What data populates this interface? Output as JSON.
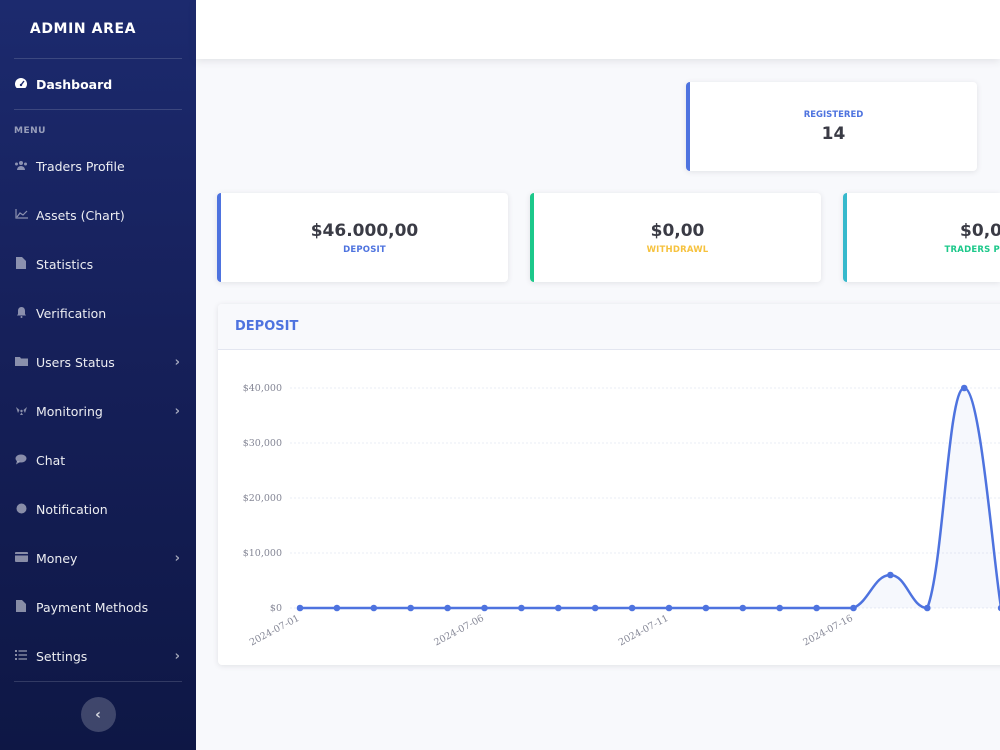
{
  "sidebar": {
    "brand": "ADMIN AREA",
    "dashboard": {
      "label": "Dashboard",
      "icon": "tachometer-icon"
    },
    "menu_heading": "MENU",
    "items": [
      {
        "label": "Traders Profile",
        "icon": "users-icon",
        "has_submenu": false
      },
      {
        "label": "Assets (Chart)",
        "icon": "area-chart-icon",
        "has_submenu": false
      },
      {
        "label": "Statistics",
        "icon": "file-icon",
        "has_submenu": false
      },
      {
        "label": "Verification",
        "icon": "bell-icon",
        "has_submenu": false
      },
      {
        "label": "Users Status",
        "icon": "folder-icon",
        "has_submenu": true
      },
      {
        "label": "Monitoring",
        "icon": "radiation-icon",
        "has_submenu": true
      },
      {
        "label": "Chat",
        "icon": "comment-icon",
        "has_submenu": false
      },
      {
        "label": "Notification",
        "icon": "circle-icon",
        "has_submenu": false
      },
      {
        "label": "Money",
        "icon": "wallet-icon",
        "has_submenu": true
      },
      {
        "label": "Payment Methods",
        "icon": "file-icon",
        "has_submenu": false
      },
      {
        "label": "Settings",
        "icon": "list-icon",
        "has_submenu": true
      }
    ],
    "toggle_icon": "chevron-left-icon"
  },
  "cards": {
    "registered": {
      "label": "REGISTERED",
      "value": "14"
    },
    "deposit": {
      "value": "$46.000,00",
      "label": "DEPOSIT",
      "label_color": "#4e73df"
    },
    "withdrawl": {
      "value": "$0,00",
      "label": "WITHDRAWL",
      "label_color": "#f6c23e"
    },
    "traders": {
      "value": "$0,0",
      "label": "TRADERS P",
      "label_color": "#1cc88a"
    }
  },
  "colors": {
    "primary": "#4e73df",
    "success": "#1cc88a",
    "info": "#36b9cc",
    "warning": "#f6c23e"
  },
  "chart_data": {
    "type": "line",
    "title": "DEPOSIT",
    "x": [
      "2024-07-01",
      "2024-07-02",
      "2024-07-03",
      "2024-07-04",
      "2024-07-05",
      "2024-07-06",
      "2024-07-07",
      "2024-07-08",
      "2024-07-09",
      "2024-07-10",
      "2024-07-11",
      "2024-07-12",
      "2024-07-13",
      "2024-07-14",
      "2024-07-15",
      "2024-07-16",
      "2024-07-17",
      "2024-07-18",
      "2024-07-19",
      "2024-07-20"
    ],
    "values": [
      0,
      0,
      0,
      0,
      0,
      0,
      0,
      0,
      0,
      0,
      0,
      0,
      0,
      0,
      0,
      0,
      6000,
      0,
      40000,
      0
    ],
    "x_tick_labels": [
      "2024-07-01",
      "2024-07-06",
      "2024-07-11",
      "2024-07-16"
    ],
    "y_tick_labels": [
      "$0",
      "$10,000",
      "$20,000",
      "$30,000",
      "$40,000"
    ],
    "y_ticks": [
      0,
      10000,
      20000,
      30000,
      40000
    ],
    "ylim": [
      0,
      40000
    ],
    "grid": true,
    "line_color": "#4e73df"
  }
}
